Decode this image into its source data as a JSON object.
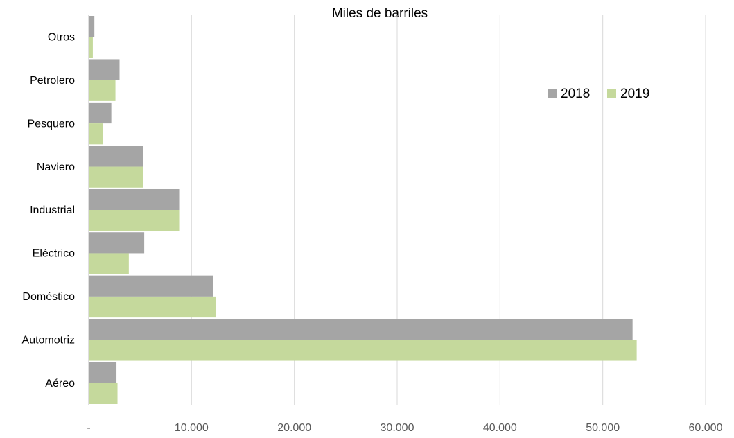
{
  "chart_data": {
    "type": "hbar",
    "title": "Miles de barriles",
    "categories": [
      "Otros",
      "Petrolero",
      "Pesquero",
      "Naviero",
      "Industrial",
      "Eléctrico",
      "Doméstico",
      "Automotriz",
      "Aéreo"
    ],
    "series": [
      {
        "name": "2018",
        "color": "#a5a5a5",
        "values": [
          550,
          3000,
          2200,
          5300,
          8800,
          5400,
          12100,
          52900,
          2700
        ]
      },
      {
        "name": "2019",
        "color": "#c5d99c",
        "values": [
          400,
          2600,
          1400,
          5300,
          8800,
          3900,
          12400,
          53300,
          2800
        ]
      }
    ],
    "xlim": [
      0,
      60000
    ],
    "xticks": [
      {
        "value": 0,
        "label": "-"
      },
      {
        "value": 10000,
        "label": "10.000"
      },
      {
        "value": 20000,
        "label": "20.000"
      },
      {
        "value": 30000,
        "label": "30.000"
      },
      {
        "value": 40000,
        "label": "40.000"
      },
      {
        "value": 50000,
        "label": "50.000"
      },
      {
        "value": 60000,
        "label": "60.000"
      }
    ],
    "grid": true,
    "legend": "upper right"
  }
}
